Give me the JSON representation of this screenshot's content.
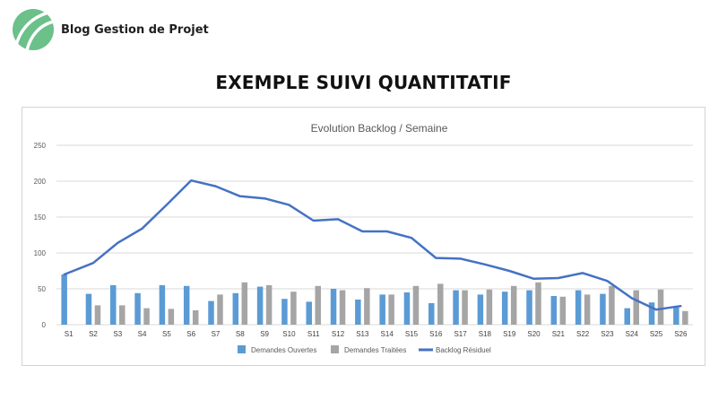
{
  "header": {
    "brand_name": "Blog Gestion de Projet",
    "page_title": "EXEMPLE SUIVI QUANTITATIF"
  },
  "colors": {
    "brand_green": "#6cc08a",
    "open": "#5b9bd5",
    "treated": "#a5a5a5",
    "backlog": "#4472c4",
    "grid": "#d9d9d9",
    "text": "#595959"
  },
  "icons": {
    "brand_logo": "leaf-logo-icon"
  },
  "chart_data": {
    "type": "bar",
    "title": "Evolution Backlog / Semaine",
    "xlabel": "",
    "ylabel": "",
    "ylim": [
      0,
      250
    ],
    "yticks": [
      0,
      50,
      100,
      150,
      200,
      250
    ],
    "grid": true,
    "legend_position": "bottom",
    "categories": [
      "S1",
      "S2",
      "S3",
      "S4",
      "S5",
      "S6",
      "S7",
      "S8",
      "S9",
      "S10",
      "S11",
      "S12",
      "S13",
      "S14",
      "S15",
      "S16",
      "S17",
      "S18",
      "S19",
      "S20",
      "S21",
      "S22",
      "S23",
      "S24",
      "S25",
      "S26"
    ],
    "series": [
      {
        "name": "Demandes Ouvertes",
        "type": "bar",
        "color": "#5b9bd5",
        "values": [
          70,
          43,
          55,
          44,
          55,
          54,
          33,
          44,
          53,
          36,
          32,
          50,
          35,
          42,
          45,
          30,
          48,
          42,
          46,
          48,
          40,
          48,
          43,
          23,
          31,
          25
        ]
      },
      {
        "name": "Demandes Traitées",
        "type": "bar",
        "color": "#a5a5a5",
        "values": [
          0,
          27,
          27,
          23,
          22,
          20,
          42,
          59,
          55,
          46,
          54,
          48,
          51,
          42,
          54,
          57,
          48,
          49,
          54,
          59,
          39,
          42,
          54,
          48,
          49,
          19
        ]
      },
      {
        "name": "Backlog Résiduel",
        "type": "line",
        "color": "#4472c4",
        "values": [
          70,
          86,
          114,
          134,
          167,
          201,
          193,
          179,
          176,
          167,
          145,
          147,
          130,
          130,
          121,
          93,
          92,
          84,
          75,
          64,
          65,
          72,
          61,
          37,
          21,
          26
        ]
      }
    ]
  }
}
